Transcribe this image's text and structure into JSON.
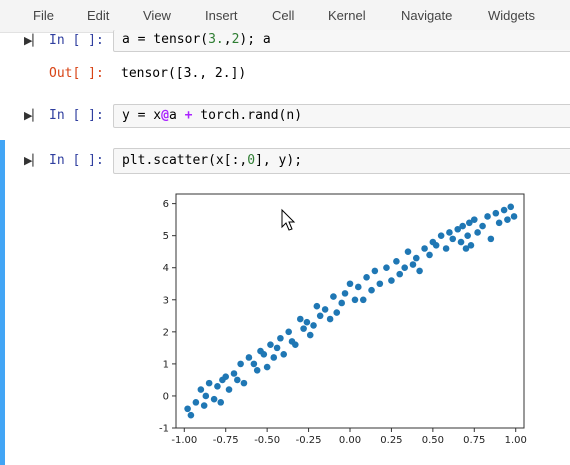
{
  "menu": {
    "items": [
      "File",
      "Edit",
      "View",
      "Insert",
      "Cell",
      "Kernel",
      "Navigate",
      "Widgets"
    ]
  },
  "cells": {
    "c1": {
      "prompt_in": "In [ ]:",
      "code_pre": "a = tensor(",
      "code_num1": "3.",
      "code_mid": ",",
      "code_num2": "2",
      "code_post": "); a",
      "prompt_out": "Out[ ]:",
      "output": "tensor([3., 2.])"
    },
    "c2": {
      "prompt_in": "In [ ]:",
      "code_pre": "y = x",
      "code_op1": "@",
      "code_mid": "a ",
      "code_op2": "+",
      "code_post": " torch.rand(n)"
    },
    "c3": {
      "prompt_in": "In [ ]:",
      "code_pre": "plt.scatter(x[:,",
      "code_num": "0",
      "code_post": "], y);"
    }
  },
  "icons": {
    "run": "run-cell-icon",
    "cursor": "mouse-pointer-icon"
  },
  "colors": {
    "point": "#1f77b4",
    "selected_border": "#42a5f5",
    "prompt_in": "#303f9f",
    "prompt_out": "#d84315"
  },
  "chart_data": {
    "type": "scatter",
    "xlim": [
      -1.05,
      1.05
    ],
    "ylim": [
      -1,
      6.3
    ],
    "xticks": [
      "-1.00",
      "-0.75",
      "-0.50",
      "-0.25",
      "0.00",
      "0.25",
      "0.50",
      "0.75",
      "1.00"
    ],
    "xtick_values": [
      -1,
      -0.75,
      -0.5,
      -0.25,
      0,
      0.25,
      0.5,
      0.75,
      1
    ],
    "yticks": [
      "-1",
      "0",
      "1",
      "2",
      "3",
      "4",
      "5",
      "6"
    ],
    "ytick_values": [
      -1,
      0,
      1,
      2,
      3,
      4,
      5,
      6
    ],
    "grid": false,
    "series": [
      {
        "x": [
          -0.98,
          -0.96,
          -0.93,
          -0.9,
          -0.88,
          -0.87,
          -0.85,
          -0.82,
          -0.8,
          -0.78,
          -0.77,
          -0.75,
          -0.73,
          -0.7,
          -0.68,
          -0.66,
          -0.64,
          -0.61,
          -0.58,
          -0.56,
          -0.54,
          -0.52,
          -0.5,
          -0.48,
          -0.46,
          -0.44,
          -0.42,
          -0.4,
          -0.37,
          -0.35,
          -0.33,
          -0.3,
          -0.28,
          -0.26,
          -0.24,
          -0.22,
          -0.2,
          -0.18,
          -0.15,
          -0.12,
          -0.1,
          -0.08,
          -0.05,
          -0.03,
          0.0,
          0.03,
          0.05,
          0.08,
          0.1,
          0.13,
          0.15,
          0.18,
          0.22,
          0.25,
          0.28,
          0.3,
          0.33,
          0.35,
          0.38,
          0.4,
          0.42,
          0.45,
          0.48,
          0.5,
          0.52,
          0.55,
          0.58,
          0.6,
          0.62,
          0.65,
          0.67,
          0.68,
          0.7,
          0.71,
          0.72,
          0.73,
          0.75,
          0.77,
          0.8,
          0.83,
          0.85,
          0.88,
          0.9,
          0.93,
          0.95,
          0.97,
          0.99
        ],
        "y": [
          -0.4,
          -0.6,
          -0.2,
          0.2,
          -0.3,
          0.0,
          0.4,
          -0.1,
          0.3,
          -0.2,
          0.5,
          0.6,
          0.2,
          0.7,
          0.5,
          1.0,
          0.4,
          1.2,
          1.0,
          0.8,
          1.4,
          1.3,
          0.9,
          1.6,
          1.2,
          1.5,
          1.8,
          1.3,
          2.0,
          1.7,
          1.6,
          2.4,
          2.1,
          2.3,
          1.9,
          2.2,
          2.8,
          2.5,
          2.7,
          2.4,
          3.1,
          2.6,
          2.9,
          3.2,
          3.5,
          3.0,
          3.4,
          3.0,
          3.7,
          3.3,
          3.9,
          3.5,
          4.0,
          3.6,
          4.2,
          3.8,
          4.0,
          4.5,
          4.1,
          4.3,
          3.9,
          4.6,
          4.4,
          4.8,
          4.7,
          5.0,
          4.6,
          5.1,
          4.9,
          5.2,
          4.8,
          5.3,
          4.6,
          5.0,
          5.4,
          4.7,
          5.5,
          5.1,
          5.3,
          5.6,
          4.9,
          5.7,
          5.4,
          5.8,
          5.5,
          5.9,
          5.6
        ]
      }
    ]
  }
}
